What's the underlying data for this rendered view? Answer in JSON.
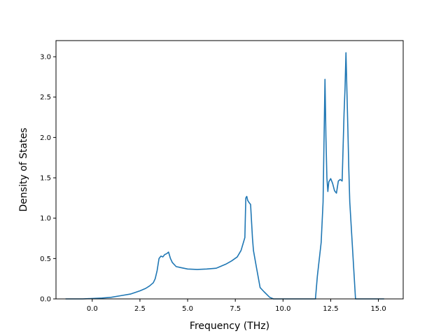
{
  "chart_data": {
    "type": "line",
    "title": "",
    "xlabel": "Frequency (THz)",
    "ylabel": "Density of States",
    "xlim": [
      -1.9,
      16.3
    ],
    "ylim": [
      0.0,
      3.2
    ],
    "xticks": [
      0.0,
      2.5,
      5.0,
      7.5,
      10.0,
      12.5,
      15.0
    ],
    "xtick_labels": [
      "0.0",
      "2.5",
      "5.0",
      "7.5",
      "10.0",
      "12.5",
      "15.0"
    ],
    "yticks": [
      0.0,
      0.5,
      1.0,
      1.5,
      2.0,
      2.5,
      3.0
    ],
    "ytick_labels": [
      "0.0",
      "0.5",
      "1.0",
      "1.5",
      "2.0",
      "2.5",
      "3.0"
    ],
    "grid": false,
    "line_color": "#1f77b4",
    "series": [
      {
        "x": [
          -1.4,
          -0.5,
          0.0,
          0.5,
          1.0,
          1.5,
          2.0,
          2.5,
          2.8,
          3.0,
          3.2,
          3.3,
          3.4,
          3.5,
          3.6,
          3.7,
          3.8,
          3.9,
          4.0,
          4.1,
          4.2,
          4.4,
          4.6,
          4.8,
          5.0,
          5.5,
          6.0,
          6.5,
          7.0,
          7.3,
          7.6,
          7.8,
          7.9,
          8.0,
          8.05,
          8.1,
          8.15,
          8.2,
          8.3,
          8.4,
          8.45,
          8.6,
          8.8,
          9.0,
          9.3,
          9.5,
          10.0,
          11.0,
          11.7,
          11.8,
          12.0,
          12.1,
          12.2,
          12.25,
          12.3,
          12.35,
          12.4,
          12.5,
          12.6,
          12.7,
          12.8,
          12.9,
          13.0,
          13.1,
          13.2,
          13.25,
          13.3,
          13.4,
          13.45,
          13.5,
          13.6,
          13.8,
          13.95,
          14.0,
          14.5,
          15.3
        ],
        "y": [
          0.0,
          0.0,
          0.005,
          0.01,
          0.02,
          0.04,
          0.06,
          0.1,
          0.13,
          0.16,
          0.2,
          0.25,
          0.35,
          0.5,
          0.53,
          0.52,
          0.55,
          0.56,
          0.58,
          0.5,
          0.45,
          0.4,
          0.39,
          0.38,
          0.37,
          0.365,
          0.37,
          0.38,
          0.43,
          0.47,
          0.52,
          0.6,
          0.68,
          0.76,
          1.25,
          1.27,
          1.22,
          1.2,
          1.17,
          0.75,
          0.6,
          0.4,
          0.14,
          0.09,
          0.02,
          0.0,
          0.0,
          0.0,
          0.0,
          0.28,
          0.7,
          1.2,
          2.72,
          2.0,
          1.5,
          1.33,
          1.45,
          1.49,
          1.43,
          1.34,
          1.31,
          1.46,
          1.48,
          1.46,
          2.3,
          2.6,
          3.05,
          2.1,
          1.6,
          1.2,
          0.8,
          0.0,
          0.0,
          0.0,
          0.0,
          0.0
        ]
      }
    ]
  }
}
